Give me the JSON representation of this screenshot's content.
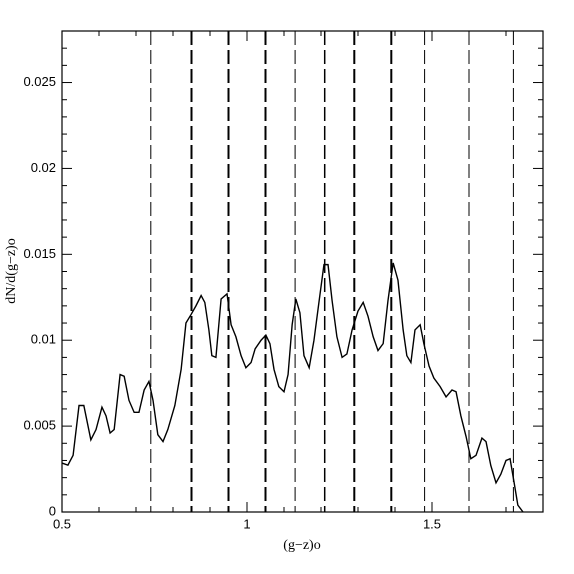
{
  "chart_data": {
    "type": "line",
    "xlabel": "(g−z)o",
    "ylabel": "dN/d(g−z)o",
    "xlim": [
      0.5,
      1.8
    ],
    "ylim": [
      0,
      0.028
    ],
    "xticks": [
      0.5,
      1,
      1.5
    ],
    "xminor_ticks": [
      0.6,
      0.7,
      0.8,
      0.9,
      1.1,
      1.2,
      1.3,
      1.4,
      1.6,
      1.7
    ],
    "yticks": [
      0,
      0.005,
      0.01,
      0.015,
      0.02,
      0.025
    ],
    "yminor_ticks": [
      0.001,
      0.002,
      0.003,
      0.004,
      0.006,
      0.007,
      0.008,
      0.009,
      0.011,
      0.012,
      0.013,
      0.014,
      0.016,
      0.017,
      0.018,
      0.019,
      0.021,
      0.022,
      0.023,
      0.024,
      0.026,
      0.027
    ],
    "color": "#000000",
    "vlines": [
      0.74,
      0.85,
      0.95,
      1.05,
      1.13,
      1.21,
      1.29,
      1.39,
      1.48,
      1.6,
      1.72
    ],
    "vline_widths": [
      1,
      2,
      2,
      2,
      1,
      1.5,
      2,
      2,
      1,
      1,
      1
    ],
    "x": [
      0.5,
      0.516,
      0.53,
      0.546,
      0.559,
      0.578,
      0.592,
      0.608,
      0.619,
      0.63,
      0.641,
      0.657,
      0.668,
      0.681,
      0.695,
      0.708,
      0.722,
      0.735,
      0.746,
      0.759,
      0.773,
      0.786,
      0.805,
      0.822,
      0.835,
      0.849,
      0.862,
      0.876,
      0.886,
      0.897,
      0.905,
      0.916,
      0.93,
      0.946,
      0.957,
      0.97,
      0.984,
      0.997,
      1.011,
      1.022,
      1.038,
      1.051,
      1.062,
      1.073,
      1.086,
      1.1,
      1.111,
      1.122,
      1.132,
      1.143,
      1.154,
      1.168,
      1.181,
      1.195,
      1.208,
      1.219,
      1.23,
      1.243,
      1.257,
      1.27,
      1.284,
      1.3,
      1.314,
      1.327,
      1.341,
      1.354,
      1.368,
      1.381,
      1.395,
      1.408,
      1.422,
      1.432,
      1.443,
      1.454,
      1.468,
      1.478,
      1.492,
      1.505,
      1.522,
      1.538,
      1.554,
      1.565,
      1.578,
      1.592,
      1.605,
      1.619,
      1.635,
      1.646,
      1.659,
      1.673,
      1.686,
      1.7,
      1.711,
      1.722,
      1.732,
      1.746
    ],
    "values": [
      0.00285,
      0.00273,
      0.0033,
      0.0062,
      0.0062,
      0.0042,
      0.0048,
      0.0061,
      0.0056,
      0.0046,
      0.0048,
      0.008,
      0.0079,
      0.0065,
      0.0058,
      0.0058,
      0.0071,
      0.0076,
      0.0065,
      0.0045,
      0.0041,
      0.0048,
      0.0062,
      0.0083,
      0.011,
      0.0115,
      0.012,
      0.0126,
      0.0122,
      0.0106,
      0.0091,
      0.009,
      0.0124,
      0.0127,
      0.0109,
      0.0102,
      0.0091,
      0.0084,
      0.0087,
      0.0095,
      0.01,
      0.0103,
      0.0098,
      0.0083,
      0.0073,
      0.007,
      0.008,
      0.0109,
      0.0124,
      0.0116,
      0.0091,
      0.0084,
      0.01,
      0.0123,
      0.0144,
      0.0144,
      0.0123,
      0.0102,
      0.009,
      0.0092,
      0.0106,
      0.0117,
      0.0122,
      0.0114,
      0.0102,
      0.0094,
      0.0098,
      0.0123,
      0.0145,
      0.0135,
      0.0106,
      0.0091,
      0.0087,
      0.0106,
      0.0109,
      0.0098,
      0.0085,
      0.0078,
      0.0073,
      0.0067,
      0.0071,
      0.007,
      0.0056,
      0.0044,
      0.0031,
      0.0033,
      0.0043,
      0.0041,
      0.0027,
      0.0017,
      0.0022,
      0.003,
      0.0031,
      0.0017,
      0.0004,
      0
    ]
  }
}
